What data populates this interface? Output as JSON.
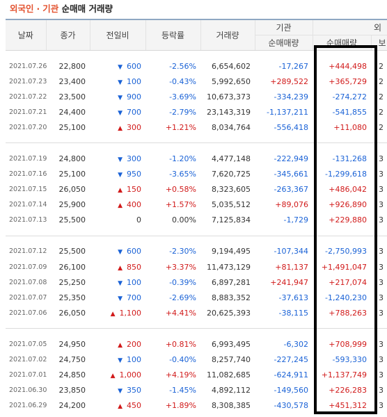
{
  "title": {
    "highlight": "외국인",
    "separator": "·",
    "highlight2": "기관",
    "rest": "순매매 거래량"
  },
  "headers": {
    "date": "날짜",
    "close": "종가",
    "change": "전일비",
    "rate": "등락률",
    "volume": "거래량",
    "inst_group": "기관",
    "inst_net": "순매매량",
    "foreign_group": "외",
    "foreign_net": "순매매량",
    "foreign_hold": "보"
  },
  "groups": [
    [
      {
        "date": "2021.07.26",
        "close": "22,800",
        "dir": "down",
        "change": "600",
        "rate": "-2.56%",
        "volume": "6,654,602",
        "inst": "-17,267",
        "foreign": "+444,498",
        "hold": "2"
      },
      {
        "date": "2021.07.23",
        "close": "23,400",
        "dir": "down",
        "change": "100",
        "rate": "-0.43%",
        "volume": "5,992,650",
        "inst": "+289,522",
        "foreign": "+365,729",
        "hold": "2"
      },
      {
        "date": "2021.07.22",
        "close": "23,500",
        "dir": "down",
        "change": "900",
        "rate": "-3.69%",
        "volume": "10,673,373",
        "inst": "-334,239",
        "foreign": "-274,272",
        "hold": "2"
      },
      {
        "date": "2021.07.21",
        "close": "24,400",
        "dir": "down",
        "change": "700",
        "rate": "-2.79%",
        "volume": "23,143,319",
        "inst": "-1,137,211",
        "foreign": "-541,855",
        "hold": "2"
      },
      {
        "date": "2021.07.20",
        "close": "25,100",
        "dir": "up",
        "change": "300",
        "rate": "+1.21%",
        "volume": "8,034,764",
        "inst": "-556,418",
        "foreign": "+11,080",
        "hold": "2"
      }
    ],
    [
      {
        "date": "2021.07.19",
        "close": "24,800",
        "dir": "down",
        "change": "300",
        "rate": "-1.20%",
        "volume": "4,477,148",
        "inst": "-222,949",
        "foreign": "-131,268",
        "hold": "3"
      },
      {
        "date": "2021.07.16",
        "close": "25,100",
        "dir": "down",
        "change": "950",
        "rate": "-3.65%",
        "volume": "7,620,725",
        "inst": "-345,661",
        "foreign": "-1,299,618",
        "hold": "3"
      },
      {
        "date": "2021.07.15",
        "close": "26,050",
        "dir": "up",
        "change": "150",
        "rate": "+0.58%",
        "volume": "8,323,605",
        "inst": "-263,367",
        "foreign": "+486,042",
        "hold": "3"
      },
      {
        "date": "2021.07.14",
        "close": "25,900",
        "dir": "up",
        "change": "400",
        "rate": "+1.57%",
        "volume": "5,035,512",
        "inst": "+89,076",
        "foreign": "+926,890",
        "hold": "3"
      },
      {
        "date": "2021.07.13",
        "close": "25,500",
        "dir": "flat",
        "change": "0",
        "rate": "0.00%",
        "volume": "7,125,834",
        "inst": "-1,729",
        "foreign": "+229,880",
        "hold": "3"
      }
    ],
    [
      {
        "date": "2021.07.12",
        "close": "25,500",
        "dir": "down",
        "change": "600",
        "rate": "-2.30%",
        "volume": "9,194,495",
        "inst": "-107,344",
        "foreign": "-2,750,993",
        "hold": "3"
      },
      {
        "date": "2021.07.09",
        "close": "26,100",
        "dir": "up",
        "change": "850",
        "rate": "+3.37%",
        "volume": "11,473,129",
        "inst": "+81,137",
        "foreign": "+1,491,047",
        "hold": "3"
      },
      {
        "date": "2021.07.08",
        "close": "25,250",
        "dir": "down",
        "change": "100",
        "rate": "-0.39%",
        "volume": "6,897,281",
        "inst": "+241,947",
        "foreign": "+217,074",
        "hold": "3"
      },
      {
        "date": "2021.07.07",
        "close": "25,350",
        "dir": "down",
        "change": "700",
        "rate": "-2.69%",
        "volume": "8,883,352",
        "inst": "-37,613",
        "foreign": "-1,240,230",
        "hold": "3"
      },
      {
        "date": "2021.07.06",
        "close": "26,050",
        "dir": "up",
        "change": "1,100",
        "rate": "+4.41%",
        "volume": "20,625,393",
        "inst": "-38,115",
        "foreign": "+788,263",
        "hold": "3"
      }
    ],
    [
      {
        "date": "2021.07.05",
        "close": "24,950",
        "dir": "up",
        "change": "200",
        "rate": "+0.81%",
        "volume": "6,993,495",
        "inst": "-6,302",
        "foreign": "+708,999",
        "hold": "3"
      },
      {
        "date": "2021.07.02",
        "close": "24,750",
        "dir": "down",
        "change": "100",
        "rate": "-0.40%",
        "volume": "8,257,740",
        "inst": "-227,245",
        "foreign": "-593,330",
        "hold": "3"
      },
      {
        "date": "2021.07.01",
        "close": "24,850",
        "dir": "up",
        "change": "1,000",
        "rate": "+4.19%",
        "volume": "11,082,685",
        "inst": "-624,911",
        "foreign": "+1,137,749",
        "hold": "3"
      },
      {
        "date": "2021.06.30",
        "close": "23,850",
        "dir": "down",
        "change": "350",
        "rate": "-1.45%",
        "volume": "4,892,112",
        "inst": "-149,560",
        "foreign": "+226,283",
        "hold": "3"
      },
      {
        "date": "2021.06.29",
        "close": "24,200",
        "dir": "up",
        "change": "450",
        "rate": "+1.89%",
        "volume": "8,308,385",
        "inst": "-430,578",
        "foreign": "+451,312",
        "hold": "3"
      }
    ]
  ],
  "colors": {
    "up": "#d11a1a",
    "down": "#1a62d6",
    "title_accent": "#e3522f",
    "highlight_box": "#000000"
  }
}
